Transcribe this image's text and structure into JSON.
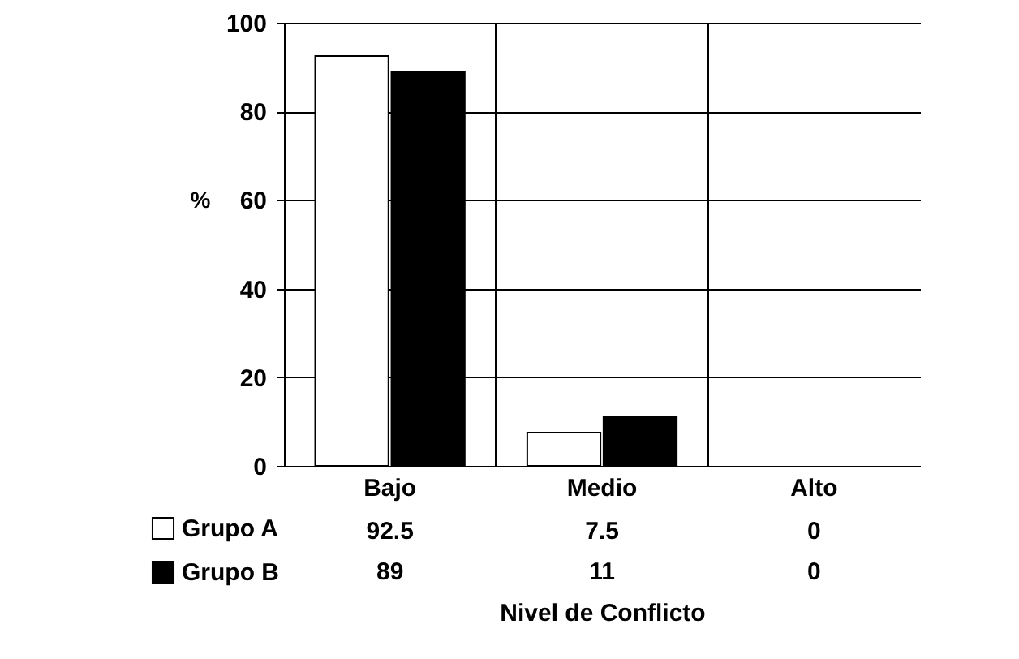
{
  "chart_data": {
    "type": "bar",
    "xlabel": "Nivel de Conflicto",
    "ylabel": "%",
    "categories": [
      "Bajo",
      "Medio",
      "Alto"
    ],
    "series": [
      {
        "name": "Grupo A",
        "color": "#ffffff",
        "values": [
          92.5,
          7.5,
          0
        ]
      },
      {
        "name": "Grupo B",
        "color": "#000000",
        "values": [
          89,
          11,
          0
        ]
      }
    ],
    "ylim": [
      0,
      100
    ],
    "yticks": [
      0,
      20,
      40,
      60,
      80,
      100
    ],
    "grid": true,
    "legend": "bottom left",
    "data_labels": true
  }
}
